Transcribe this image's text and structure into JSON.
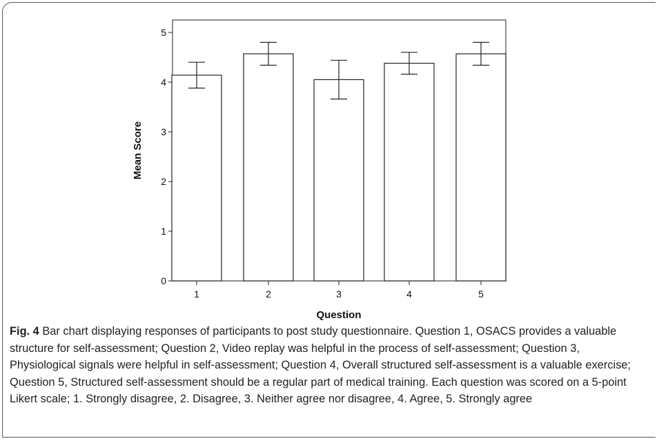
{
  "chart_data": {
    "type": "bar",
    "categories": [
      "1",
      "2",
      "3",
      "4",
      "5"
    ],
    "values": [
      4.14,
      4.57,
      4.05,
      4.38,
      4.57
    ],
    "error_low": [
      3.88,
      4.34,
      3.66,
      4.16,
      4.34
    ],
    "error_high": [
      4.4,
      4.8,
      4.44,
      4.6,
      4.8
    ],
    "xlabel": "Question",
    "ylabel": "Mean Score",
    "ylim": [
      0,
      5
    ],
    "yticks": [
      0,
      1,
      2,
      3,
      4,
      5
    ],
    "grid": false
  },
  "caption": {
    "label": "Fig. 4",
    "text": " Bar chart displaying responses of participants to post study questionnaire. Question 1, OSACS provides a valuable structure for self-assessment; Question 2, Video replay was helpful in the process of self-assessment; Question 3, Physiological signals were helpful in self-assessment; Question 4, Overall structured self-assessment is a valuable exercise; Question 5, Structured self-assessment should be a regular part of medical training. Each question was scored on a 5-point Likert scale; 1. Strongly disagree, 2. Disagree, 3. Neither agree nor disagree, 4. Agree, 5. Strongly agree"
  }
}
